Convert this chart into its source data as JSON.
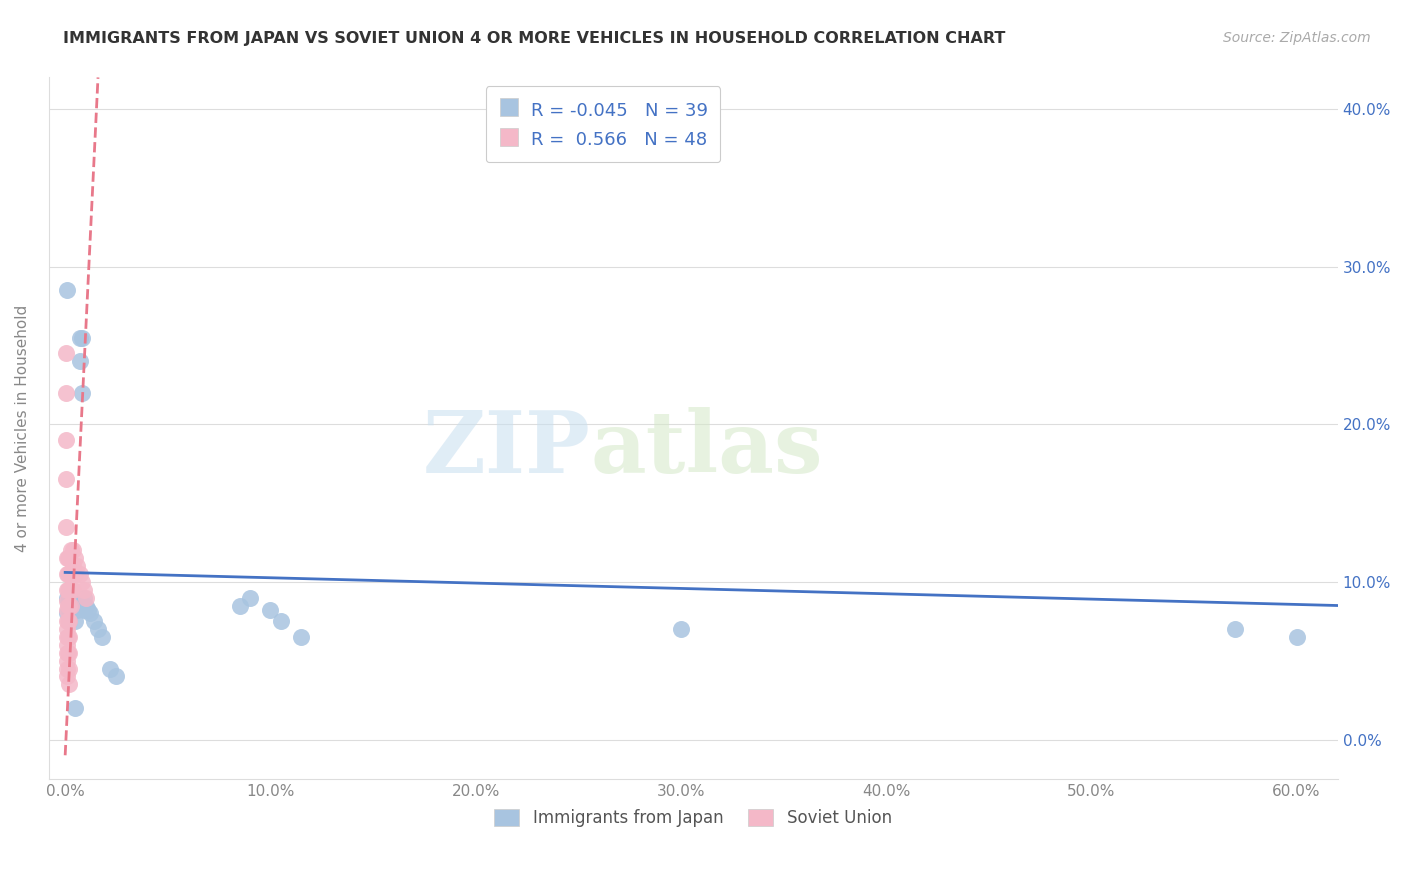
{
  "title": "IMMIGRANTS FROM JAPAN VS SOVIET UNION 4 OR MORE VEHICLES IN HOUSEHOLD CORRELATION CHART",
  "source": "Source: ZipAtlas.com",
  "ylabel": "4 or more Vehicles in Household",
  "xlim": [
    -0.008,
    0.62
  ],
  "ylim": [
    -0.025,
    0.42
  ],
  "x_tick_vals": [
    0.0,
    0.1,
    0.2,
    0.3,
    0.4,
    0.5,
    0.6
  ],
  "x_tick_labels": [
    "0.0%",
    "10.0%",
    "20.0%",
    "30.0%",
    "40.0%",
    "50.0%",
    "60.0%"
  ],
  "y_tick_vals": [
    0.0,
    0.1,
    0.2,
    0.3,
    0.4
  ],
  "y_tick_labels": [
    "0.0%",
    "10.0%",
    "20.0%",
    "30.0%",
    "40.0%"
  ],
  "japan_R": -0.045,
  "japan_N": 39,
  "soviet_R": 0.566,
  "soviet_N": 48,
  "japan_color": "#a8c4e0",
  "soviet_color": "#f4b8c8",
  "japan_line_color": "#4472c4",
  "soviet_line_color": "#e8788a",
  "legend_text_color": "#4472c4",
  "watermark_zip": "ZIP",
  "watermark_atlas": "atlas",
  "japan_x": [
    0.001,
    0.001,
    0.001,
    0.002,
    0.002,
    0.002,
    0.003,
    0.003,
    0.003,
    0.004,
    0.004,
    0.005,
    0.005,
    0.005,
    0.006,
    0.006,
    0.007,
    0.007,
    0.008,
    0.008,
    0.009,
    0.009,
    0.01,
    0.011,
    0.012,
    0.014,
    0.016,
    0.018,
    0.022,
    0.025,
    0.085,
    0.09,
    0.1,
    0.105,
    0.115,
    0.3,
    0.57,
    0.6,
    0.005
  ],
  "japan_y": [
    0.285,
    0.09,
    0.08,
    0.09,
    0.082,
    0.075,
    0.09,
    0.085,
    0.08,
    0.09,
    0.082,
    0.09,
    0.085,
    0.075,
    0.09,
    0.082,
    0.255,
    0.24,
    0.255,
    0.22,
    0.09,
    0.082,
    0.085,
    0.082,
    0.08,
    0.075,
    0.07,
    0.065,
    0.045,
    0.04,
    0.085,
    0.09,
    0.082,
    0.075,
    0.065,
    0.07,
    0.07,
    0.065,
    0.02
  ],
  "soviet_x": [
    0.0005,
    0.0005,
    0.0005,
    0.0005,
    0.0005,
    0.001,
    0.001,
    0.001,
    0.001,
    0.001,
    0.001,
    0.001,
    0.001,
    0.001,
    0.001,
    0.001,
    0.001,
    0.001,
    0.0015,
    0.0015,
    0.0015,
    0.0015,
    0.0015,
    0.0015,
    0.0015,
    0.002,
    0.002,
    0.002,
    0.002,
    0.002,
    0.002,
    0.002,
    0.002,
    0.002,
    0.003,
    0.003,
    0.003,
    0.003,
    0.004,
    0.004,
    0.004,
    0.005,
    0.005,
    0.006,
    0.007,
    0.008,
    0.009,
    0.01
  ],
  "soviet_y": [
    0.245,
    0.22,
    0.19,
    0.165,
    0.135,
    0.115,
    0.105,
    0.095,
    0.088,
    0.082,
    0.075,
    0.07,
    0.065,
    0.06,
    0.055,
    0.05,
    0.045,
    0.04,
    0.115,
    0.105,
    0.095,
    0.085,
    0.075,
    0.065,
    0.055,
    0.115,
    0.105,
    0.095,
    0.085,
    0.075,
    0.065,
    0.055,
    0.045,
    0.035,
    0.12,
    0.105,
    0.095,
    0.085,
    0.12,
    0.11,
    0.095,
    0.115,
    0.105,
    0.11,
    0.105,
    0.1,
    0.095,
    0.09
  ],
  "japan_line_x": [
    0.0,
    0.62
  ],
  "japan_line_y": [
    0.106,
    0.085
  ],
  "soviet_line_x": [
    0.0,
    0.016
  ],
  "soviet_line_y": [
    -0.01,
    0.42
  ]
}
